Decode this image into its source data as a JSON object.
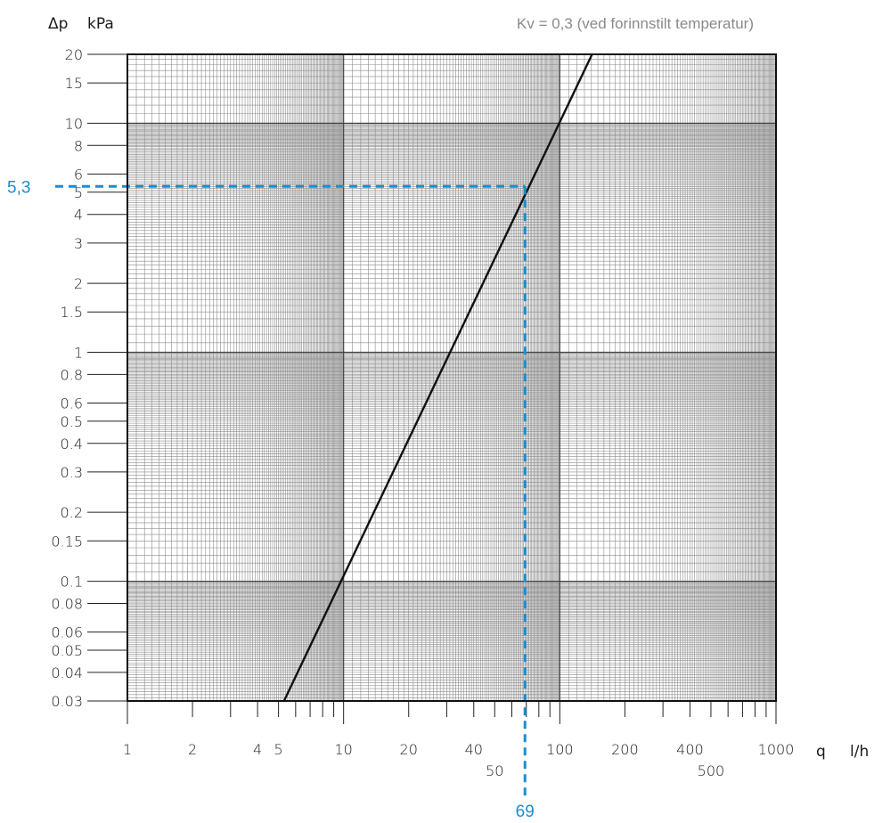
{
  "chart_data": {
    "type": "line",
    "scale": {
      "x": "log",
      "y": "log"
    },
    "grid": true,
    "note": "Kv = 0,3 (ved forinnstilt temperatur)",
    "xlabel": {
      "symbol": "q",
      "unit": "l/h"
    },
    "ylabel": {
      "symbol": "Δp",
      "unit": "kPa"
    },
    "xlim": [
      1,
      1000
    ],
    "ylim": [
      0.03,
      20
    ],
    "xticks": [
      {
        "v": 1,
        "t": "1",
        "row": 0
      },
      {
        "v": 2,
        "t": "2",
        "row": 0
      },
      {
        "v": 4,
        "t": "4",
        "row": 0
      },
      {
        "v": 5,
        "t": "5",
        "row": 0
      },
      {
        "v": 10,
        "t": "10",
        "row": 0
      },
      {
        "v": 20,
        "t": "20",
        "row": 0
      },
      {
        "v": 40,
        "t": "40",
        "row": 0
      },
      {
        "v": 50,
        "t": "50",
        "row": 1
      },
      {
        "v": 100,
        "t": "100",
        "row": 0
      },
      {
        "v": 200,
        "t": "200",
        "row": 0
      },
      {
        "v": 400,
        "t": "400",
        "row": 0
      },
      {
        "v": 500,
        "t": "500",
        "row": 1
      },
      {
        "v": 1000,
        "t": "1000",
        "row": 0
      }
    ],
    "yticks": [
      {
        "v": 20,
        "t": "20"
      },
      {
        "v": 15,
        "t": "15"
      },
      {
        "v": 10,
        "t": "10"
      },
      {
        "v": 8,
        "t": "8"
      },
      {
        "v": 6,
        "t": "6"
      },
      {
        "v": 5,
        "t": "5"
      },
      {
        "v": 4,
        "t": "4"
      },
      {
        "v": 3,
        "t": "3"
      },
      {
        "v": 2,
        "t": "2"
      },
      {
        "v": 1.5,
        "t": "1.5"
      },
      {
        "v": 1,
        "t": "1"
      },
      {
        "v": 0.8,
        "t": "0.8"
      },
      {
        "v": 0.6,
        "t": "0.6"
      },
      {
        "v": 0.5,
        "t": "0.5"
      },
      {
        "v": 0.4,
        "t": "0.4"
      },
      {
        "v": 0.3,
        "t": "0.3"
      },
      {
        "v": 0.2,
        "t": "0.2"
      },
      {
        "v": 0.15,
        "t": "0.15"
      },
      {
        "v": 0.1,
        "t": "0.1"
      },
      {
        "v": 0.08,
        "t": "0.08"
      },
      {
        "v": 0.06,
        "t": "0.06"
      },
      {
        "v": 0.05,
        "t": "0.05"
      },
      {
        "v": 0.04,
        "t": "0.04"
      },
      {
        "v": 0.03,
        "t": "0.03"
      }
    ],
    "series": [
      {
        "points": [
          [
            5.3,
            0.03
          ],
          [
            141,
            20
          ]
        ]
      }
    ],
    "highlight": {
      "x": 69,
      "y": 5.3,
      "x_label": "69",
      "y_label": "5,3",
      "color": "#1a8ed1"
    }
  }
}
